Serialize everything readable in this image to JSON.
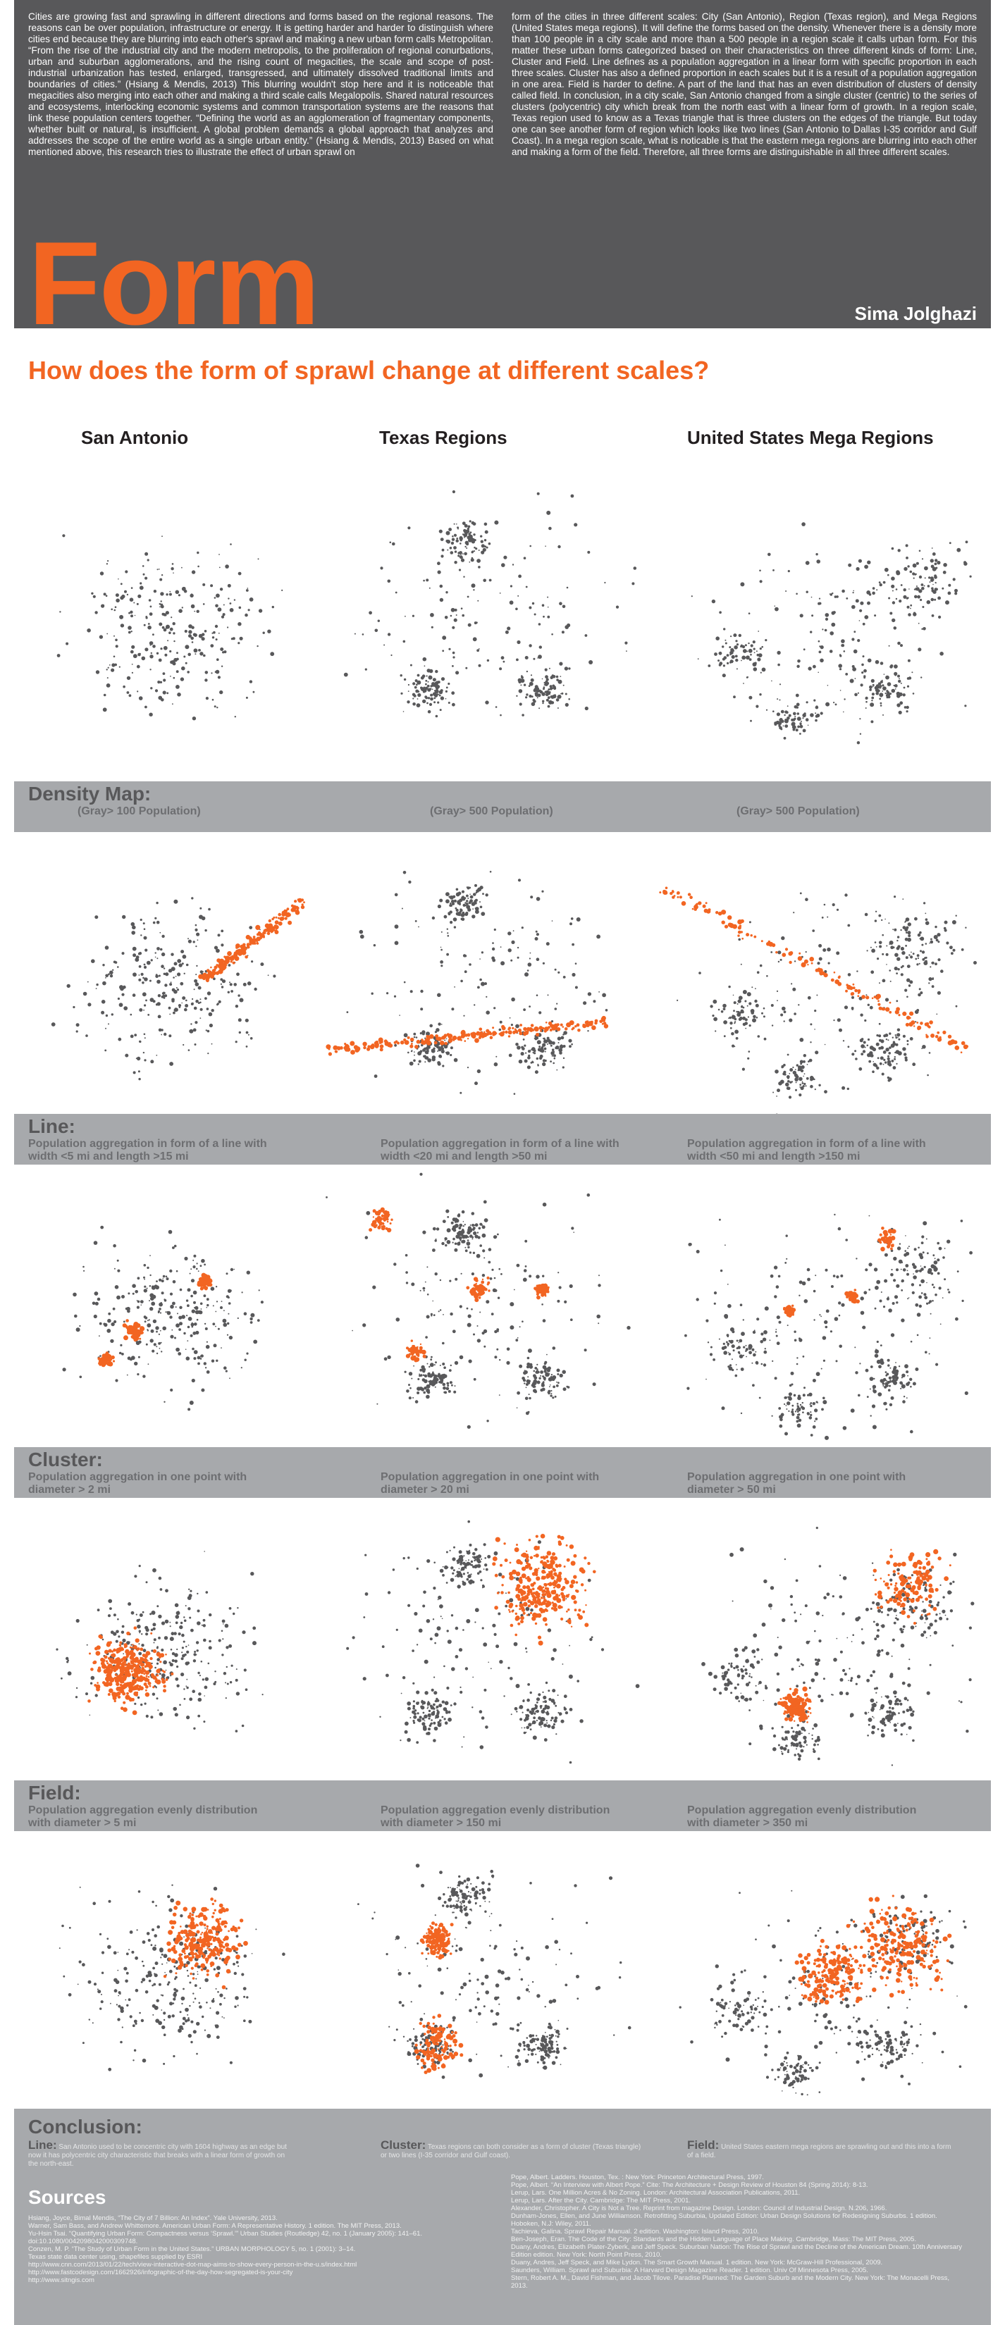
{
  "header": {
    "intro": [
      "Cities are growing fast and sprawling in different directions and forms based on the regional reasons. The reasons can be over population, infrastructure or energy. It is getting harder and harder to distinguish where cities end because they are blurring into each other's sprawl and making a new urban form calls Metropolitan. “From the rise of the industrial city and the modern metropolis, to the proliferation of regional conurbations, urban and suburban agglomerations, and the rising count of megacities, the scale and scope of post-industrial urbanization has tested, enlarged, transgressed, and ultimately dissolved traditional limits and boundaries of cities.” (Hsiang & Mendis, 2013) This blurring wouldn't stop here and it is noticeable that megacities also merging into each other and making a third scale calls Megalopolis. Shared natural resources and ecosystems, interlocking economic systems and common transportation systems are the reasons that link these population centers together. “Defining the world as an agglomeration of fragmentary components, whether built or natural, is insufficient. A global problem demands a global approach that analyzes and addresses the scope of the entire world as a single urban entity.” (Hsiang & Mendis, 2013) Based on what mentioned above, this research tries to illustrate the effect of urban sprawl on",
      "form of the cities in three different scales: City (San Antonio), Region (Texas region), and Mega Regions (United States mega regions). It will define the forms based on the density. Whenever there is a density more than 100 people in a city scale and more than a 500 people in a region scale it calls urban form. For this matter these urban forms categorized based on their characteristics on three different kinds of form: Line, Cluster and Field. Line defines as a population aggregation in a linear form with specific proportion in each three scales. Cluster has also a defined proportion in each scales but it is a result of a population aggregation in one area. Field is harder to define. A part of the land that has an even distribution of clusters of density called field. In conclusion, in a city scale, San Antonio changed from a single cluster (centric) to the series of clusters (polycentric) city which break from the north east with a linear form of growth. In a region scale, Texas region used to know as a Texas triangle that is three clusters on the edges of the triangle. But today one can see another form of region which looks like two lines (San Antonio to Dallas I-35 corridor and Gulf Coast). In a mega region scale, what is noticable is that the eastern mega regions are blurring into each other and making a form of the field. Therefore, all three forms are distinguishable in all three different scales."
    ],
    "title": "Form",
    "author": "Sima Jolghazi"
  },
  "question": "How does the form of sprawl change at different scales?",
  "columns": [
    "San Antonio",
    "Texas Regions",
    "United States Mega Regions"
  ],
  "sections": [
    {
      "title": "Density Map:",
      "notes": [
        "(Gray> 100 Population)",
        "(Gray> 500 Population)",
        "(Gray> 500 Population)"
      ]
    },
    {
      "title": "Line:",
      "notes": [
        "Population aggregation in form of a line with width <5 mi and length >15 mi",
        "Population aggregation in form of a line with width <20 mi and length >50 mi",
        "Population aggregation in form of a line with width <50 mi and length >150 mi"
      ]
    },
    {
      "title": "Cluster:",
      "notes": [
        "Population aggregation in one point with diameter  > 2 mi",
        "Population aggregation in one point with diameter  > 20 mi",
        "Population aggregation in one point with diameter  > 50 mi"
      ]
    },
    {
      "title": "Field:",
      "notes": [
        "Population aggregation evenly distribution with diameter > 5 mi",
        "Population aggregation evenly distribution with diameter > 150 mi",
        "Population aggregation evenly distribution with diameter > 350 mi"
      ]
    }
  ],
  "conclusion": {
    "title": "Conclusion:",
    "items": [
      {
        "label": "Line:",
        "text": "San Antonio used to be concentric city with 1604 highway as an edge but now it has polycentric city characteristic that breaks with a linear form of growth on the north-east."
      },
      {
        "label": "Cluster:",
        "text": "Texas regions can both consider as a form of cluster (Texas triangle) or two lines (I-35 corridor and Gulf coast)."
      },
      {
        "label": "Field:",
        "text": "United States eastern mega regions are sprawling out and this into a form of a field."
      }
    ]
  },
  "sources": {
    "title": "Sources",
    "left": [
      "Hsiang, Joyce, Bimal Mendis, “The City of 7 Billion: An Index”. Yale University, 2013.",
      "Warner, Sam Bass, and Andrew Whittemore. American Urban Form: A Representative History. 1 edition. The MIT Press, 2013.",
      "Yu-Hsin Tsai. “Quantifying Urban Form: Compactness versus ‘Sprawl.’” Urban Studies (Routledge) 42, no. 1 (January 2005): 141–61. doi:10.1080/0042098042000309748.",
      "Conzen, M. P. “The Study of Urban Form in the United States.” URBAN MORPHOLOGY 5, no. 1 (2001): 3–14.",
      "Texas state data center using, shapefiles supplied by ESRI",
      "http://www.cnn.com/2013/01/22/tech/view-interactive-dot-map-aims-to-show-every-person-in-the-u.s/index.html",
      "http://www.fastcodesign.com/1662926/infographic-of-the-day-how-segregated-is-your-city",
      "http://www.sitngis.com"
    ],
    "right": [
      "Pope, Albert. Ladders. Houston, Tex. : New York: Princeton Architectural Press, 1997.",
      "Pope, Albert. “An Interview with Albert Pope.” Cite: The Architecture + Design Review of Houston 84 (Spring 2014): 8-13.",
      "Lerup, Lars. One Million Acres & No Zoning. London: Architectural Association Publications, 2011.",
      "Lerup, Lars. After the City. Cambridge: The MIT Press, 2001.",
      "Alexander, Christopher. A City is Not a Tree. Reprint from magazine Design. London: Council of Industrial Design. N.206, 1966.",
      "Dunham-Jones, Ellen, and June Williamson. Retrofitting Suburbia, Updated Edition: Urban Design Solutions for Redesigning Suburbs. 1 edition. Hoboken, N.J: Wiley, 2011.",
      "Tachieva, Galina. Sprawl Repair Manual. 2 edition. Washington: Island Press, 2010.",
      "Ben-Joseph, Eran. The Code of the City: Standards and the Hidden Language of Place Making. Cambridge, Mass: The MIT Press, 2005.",
      "Duany, Andres, Elizabeth Plater-Zyberk, and Jeff Speck. Suburban Nation: The Rise of Sprawl and the Decline of the American Dream. 10th Anniversary Edition edition. New York: North Point Press, 2010.",
      "Duany, Andres, Jeff Speck, and Mike Lydon. The Smart Growth Manual. 1 edition. New York: McGraw-Hill Professional, 2009.",
      "Saunders, William. Sprawl and Suburbia: A Harvard Design Magazine Reader. 1 edition. Univ Of Minnesota Press, 2005.",
      "Stern, Robert A. M., David Fishman, and Jacob Tilove. Paradise Planned: The Garden Suburb and the Modern City. New York: The Monacelli Press, 2013."
    ]
  }
}
